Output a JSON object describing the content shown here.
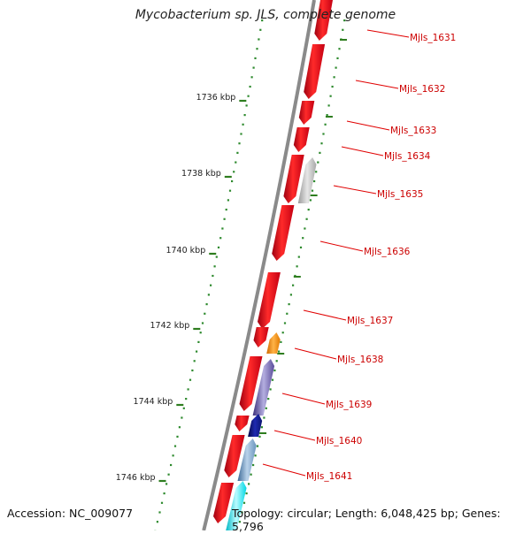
{
  "title": "Mycobacterium sp. JLS, complete genome",
  "accession_label": "Accession: NC_009077",
  "summary_label": "Topology: circular; Length: 6,048,425 bp; Genes: 5,796",
  "colors": {
    "backbone": "#8a8a8a",
    "tick_major": "#2e7d1f",
    "tick_minor": "#2e8a2e",
    "gene_label": "#cc0000",
    "leader_line": "#e00000",
    "forward_gene": "#e8001a",
    "reverse_gray": "#b5b5b5",
    "reverse_orange": "#ff8c00",
    "reverse_purple": "#5a4c9a",
    "reverse_navy": "#0a1470",
    "reverse_steel": "#5b86b0",
    "reverse_cyan": "#00e5f0"
  },
  "ticks": [
    {
      "label": "1736 kbp"
    },
    {
      "label": "1738 kbp"
    },
    {
      "label": "1740 kbp"
    },
    {
      "label": "1742 kbp"
    },
    {
      "label": "1744 kbp"
    },
    {
      "label": "1746 kbp"
    }
  ],
  "gene_labels": [
    {
      "label": "Mjls_1631"
    },
    {
      "label": "Mjls_1632"
    },
    {
      "label": "Mjls_1633"
    },
    {
      "label": "Mjls_1634"
    },
    {
      "label": "Mjls_1635"
    },
    {
      "label": "Mjls_1636"
    },
    {
      "label": "Mjls_1637"
    },
    {
      "label": "Mjls_1638"
    },
    {
      "label": "Mjls_1639"
    },
    {
      "label": "Mjls_1640"
    },
    {
      "label": "Mjls_1641"
    }
  ]
}
